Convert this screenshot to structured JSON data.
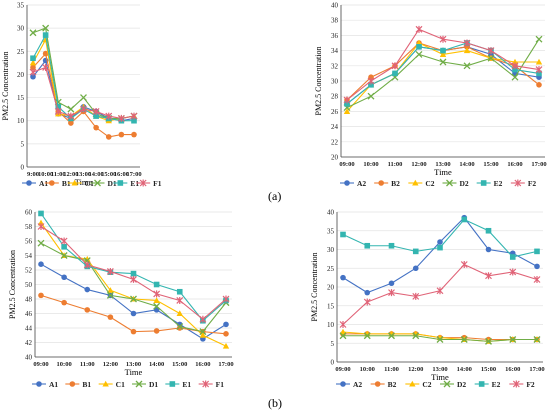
{
  "panel_labels": [
    "(a)",
    "(b)"
  ],
  "colors": {
    "A": "#4472c4",
    "B": "#ed7d31",
    "C": "#ffc000",
    "D": "#70ad47",
    "E": "#33b5b0",
    "F": "#e06377"
  },
  "chart_data": [
    {
      "type": "line",
      "xlabel": "Time",
      "ylabel": "PM2.5 Concentration",
      "categories": [
        "9:00",
        "10:00",
        "11:00",
        "12:00",
        "13:00",
        "14:00",
        "15:00",
        "16:00",
        "17:00"
      ],
      "ylim": [
        0,
        35
      ],
      "yticks": [
        0,
        5,
        10,
        15,
        20,
        25,
        30,
        35
      ],
      "grid": true,
      "legend": "bottom",
      "series": [
        {
          "name": "A1",
          "marker": "circle",
          "color_key": "A",
          "values": [
            19.5,
            23,
            11.5,
            10.5,
            13,
            12,
            10.5,
            10,
            10.5
          ]
        },
        {
          "name": "B1",
          "marker": "circle",
          "color_key": "B",
          "values": [
            21.5,
            24.5,
            12,
            9.5,
            12,
            8.5,
            6.5,
            7,
            7
          ]
        },
        {
          "name": "C1",
          "marker": "triangle",
          "color_key": "C",
          "values": [
            22.5,
            27.5,
            11.5,
            11,
            13,
            11,
            10,
            10.5,
            11
          ]
        },
        {
          "name": "D1",
          "marker": "x",
          "color_key": "D",
          "values": [
            29,
            30,
            14,
            12.5,
            15,
            11.5,
            10.5,
            10.5,
            11
          ]
        },
        {
          "name": "E1",
          "marker": "square",
          "color_key": "E",
          "values": [
            23.5,
            28.5,
            13,
            10.5,
            12.5,
            11,
            10.5,
            10,
            10
          ]
        },
        {
          "name": "F1",
          "marker": "star",
          "color_key": "F",
          "values": [
            20.5,
            21.5,
            12,
            11,
            12.5,
            12,
            11,
            10.5,
            11
          ]
        }
      ]
    },
    {
      "type": "line",
      "xlabel": "Time",
      "ylabel": "PM2.5 Concentration",
      "categories": [
        "09:00",
        "10:00",
        "11:00",
        "12:00",
        "13:00",
        "14:00",
        "15:00",
        "16:00",
        "17:00"
      ],
      "ylim": [
        20,
        40
      ],
      "yticks": [
        20,
        22,
        24,
        26,
        28,
        30,
        32,
        34,
        36,
        38,
        40
      ],
      "grid": true,
      "legend": "bottom",
      "series": [
        {
          "name": "A2",
          "marker": "circle",
          "color_key": "A",
          "values": [
            27,
            29.5,
            31,
            34.5,
            34,
            34.5,
            33.5,
            31,
            30.5
          ]
        },
        {
          "name": "B2",
          "marker": "circle",
          "color_key": "B",
          "values": [
            27.5,
            30.5,
            32,
            35,
            34,
            34.5,
            33,
            32,
            29.5
          ]
        },
        {
          "name": "C2",
          "marker": "triangle",
          "color_key": "C",
          "values": [
            26,
            29.5,
            31,
            35,
            33.5,
            34,
            33,
            32.5,
            32.5
          ]
        },
        {
          "name": "D2",
          "marker": "x",
          "color_key": "D",
          "values": [
            26.5,
            28,
            30.5,
            33.5,
            32.5,
            32,
            33,
            30.5,
            35.5
          ]
        },
        {
          "name": "E2",
          "marker": "square",
          "color_key": "E",
          "values": [
            27,
            29.5,
            31,
            34.5,
            34,
            35,
            34,
            31.5,
            31
          ]
        },
        {
          "name": "F2",
          "marker": "star",
          "color_key": "F",
          "values": [
            27.5,
            30,
            32,
            36.8,
            35.5,
            35,
            34,
            32,
            31.5
          ]
        }
      ]
    },
    {
      "type": "line",
      "xlabel": "Time",
      "ylabel": "PM2.5 Concentration",
      "categories": [
        "09:00",
        "10:00",
        "11:00",
        "12:00",
        "13:00",
        "14:00",
        "15:00",
        "16:00",
        "17:00"
      ],
      "ylim": [
        40,
        60
      ],
      "yticks": [
        40,
        42,
        44,
        46,
        48,
        50,
        52,
        54,
        56,
        58,
        60
      ],
      "grid": true,
      "legend": "bottom",
      "series": [
        {
          "name": "A1",
          "marker": "circle",
          "color_key": "A",
          "values": [
            52.8,
            51,
            49.3,
            48.5,
            46,
            46.5,
            44.5,
            42.5,
            44.5
          ]
        },
        {
          "name": "B1",
          "marker": "circle",
          "color_key": "B",
          "values": [
            48.5,
            47.5,
            46.5,
            45.5,
            43.5,
            43.6,
            44,
            43.5,
            43.2
          ]
        },
        {
          "name": "C1",
          "marker": "triangle",
          "color_key": "C",
          "values": [
            58.5,
            54,
            53.5,
            49.2,
            48,
            47.8,
            46,
            43,
            41.5
          ]
        },
        {
          "name": "D1",
          "marker": "x",
          "color_key": "D",
          "values": [
            55.7,
            54,
            53.3,
            48.5,
            48,
            47,
            44.2,
            43.5,
            47.5
          ]
        },
        {
          "name": "E1",
          "marker": "square",
          "color_key": "E",
          "values": [
            59.8,
            55.2,
            52.5,
            51.7,
            51.5,
            50,
            49,
            45,
            47.8
          ]
        },
        {
          "name": "F1",
          "marker": "star",
          "color_key": "F",
          "values": [
            58,
            56,
            52.7,
            51.8,
            50.7,
            48.7,
            47.8,
            45.2,
            48
          ]
        }
      ]
    },
    {
      "type": "line",
      "xlabel": "Time",
      "ylabel": "PM2.5 Concentration",
      "categories": [
        "09:00",
        "10:00",
        "11:00",
        "12:00",
        "13:00",
        "14:00",
        "15:00",
        "16:00",
        "17:00"
      ],
      "ylim": [
        0,
        40
      ],
      "yticks": [
        0,
        5,
        10,
        15,
        20,
        25,
        30,
        35,
        40
      ],
      "grid": true,
      "legend": "bottom",
      "series": [
        {
          "name": "A2",
          "marker": "circle",
          "color_key": "A",
          "values": [
            22.5,
            18.5,
            21,
            25,
            32,
            38.5,
            30,
            29,
            25.5
          ]
        },
        {
          "name": "B2",
          "marker": "circle",
          "color_key": "B",
          "values": [
            7.5,
            7.5,
            7.5,
            7.5,
            6.5,
            6.5,
            6,
            6,
            6
          ]
        },
        {
          "name": "C2",
          "marker": "triangle",
          "color_key": "C",
          "values": [
            8,
            7.5,
            7.5,
            7.5,
            6.5,
            6,
            5.5,
            6,
            6
          ]
        },
        {
          "name": "D2",
          "marker": "x",
          "color_key": "D",
          "values": [
            7,
            7,
            7,
            7,
            6,
            6,
            5.5,
            6,
            6
          ]
        },
        {
          "name": "E2",
          "marker": "square",
          "color_key": "E",
          "values": [
            34,
            31,
            31,
            29.5,
            30.5,
            38,
            35,
            28,
            29.5
          ]
        },
        {
          "name": "F2",
          "marker": "star",
          "color_key": "F",
          "values": [
            10,
            16,
            18.5,
            17.5,
            19,
            26,
            23,
            24,
            22
          ]
        }
      ]
    }
  ]
}
